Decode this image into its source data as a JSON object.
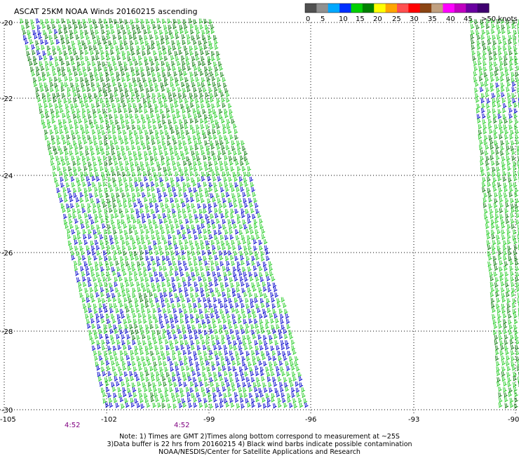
{
  "title": "ASCAT 25KM NOAA Winds 20160215 ascending",
  "colorbar": {
    "colors": [
      "#505050",
      "#909090",
      "#00a8ff",
      "#0030ff",
      "#00d000",
      "#008000",
      "#ffff00",
      "#ffa500",
      "#ff5050",
      "#ff0000",
      "#8b4513",
      "#c0a080",
      "#ff00ff",
      "#c000c0",
      "#6a00a0",
      "#400070"
    ],
    "labels": [
      "0",
      "5",
      "10",
      "15",
      "20",
      "25",
      "30",
      "35",
      "40",
      "45",
      ">50 knots"
    ]
  },
  "latitude_labels": [
    "-20",
    "-22",
    "-24",
    "-26",
    "-28",
    "-30"
  ],
  "longitude_labels": [
    "-105",
    "-102",
    "-99",
    "-96",
    "-93",
    "-90"
  ],
  "time_labels": [
    "4:52",
    "4:52"
  ],
  "notes": [
    "Note: 1) Times are GMT 2)Times along bottom correspond to measurement at ~25S",
    "3)Data buffer is 22 hrs from 20160215 4) Black wind barbs indicate possible contamination",
    "NOAA/NESDIS/Center for Satellite Applications and Research"
  ],
  "swath_colors": {
    "light": "#22cc22",
    "dark": "#0a7a0a",
    "blue": "#0000cc"
  }
}
